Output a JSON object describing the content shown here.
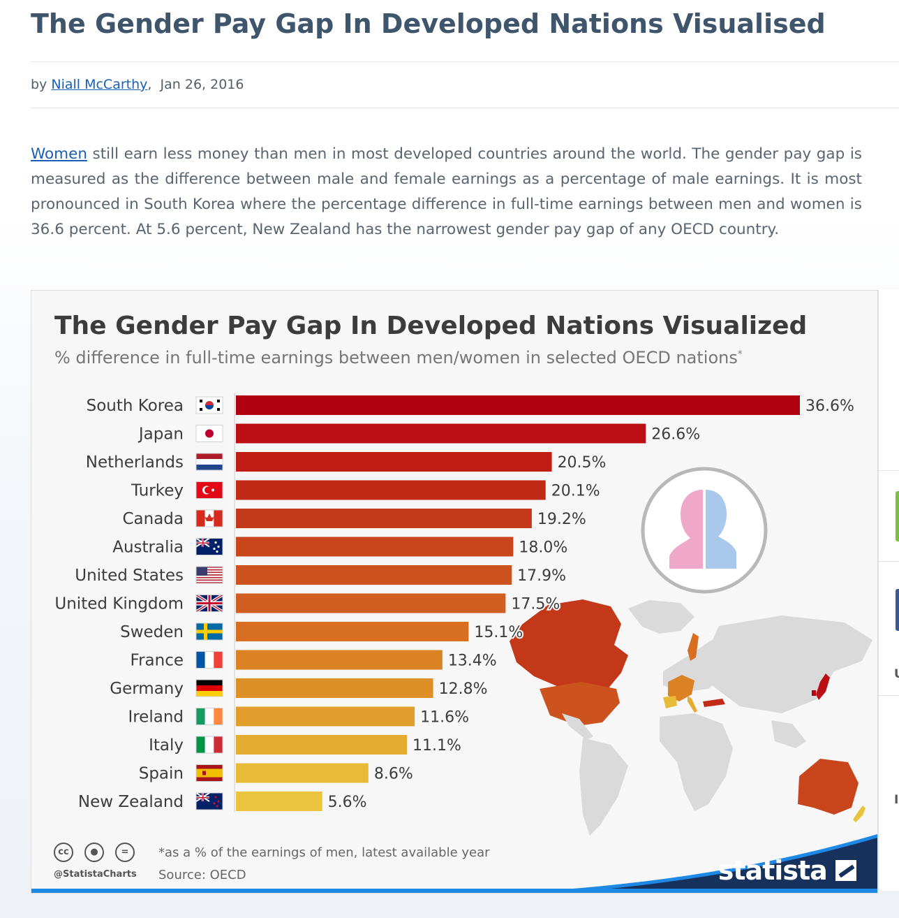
{
  "article": {
    "title": "The Gender Pay Gap In Developed Nations Visualised",
    "by": "by",
    "author": "Niall McCarthy",
    "date": "Jan 26, 2016",
    "link_word": "Women",
    "body": "still earn less money than men in most developed countries around the world. The gender pay gap is measured as the difference between male and female earnings as a percentage of male earnings. It is most pronounced in South Korea where the percentage difference in full-time earnings between men and women is 36.6 percent. At 5.6 percent, New Zealand has the narrowest gender pay gap of any OECD country."
  },
  "chart_data": {
    "type": "bar",
    "orientation": "horizontal",
    "title": "The Gender Pay Gap In Developed Nations Visualized",
    "subtitle": "% difference in full-time earnings between men/women in selected OECD nations",
    "subtitle_mark": "*",
    "categories": [
      "South Korea",
      "Japan",
      "Netherlands",
      "Turkey",
      "Canada",
      "Australia",
      "United States",
      "United Kingdom",
      "Sweden",
      "France",
      "Germany",
      "Ireland",
      "Italy",
      "Spain",
      "New Zealand"
    ],
    "values": [
      36.6,
      26.6,
      20.5,
      20.1,
      19.2,
      18.0,
      17.9,
      17.5,
      15.1,
      13.4,
      12.8,
      11.6,
      11.1,
      8.6,
      5.6
    ],
    "value_labels": [
      "36.6%",
      "26.6%",
      "20.5%",
      "20.1%",
      "19.2%",
      "18.0%",
      "17.9%",
      "17.5%",
      "15.1%",
      "13.4%",
      "12.8%",
      "11.6%",
      "11.1%",
      "8.6%",
      "5.6%"
    ],
    "bar_colors": [
      "#b1000f",
      "#bb0e14",
      "#bf1d16",
      "#c12a17",
      "#c4381a",
      "#c9461c",
      "#cc521e",
      "#d05e20",
      "#d66f22",
      "#db8225",
      "#de9028",
      "#e19e2c",
      "#e4ad31",
      "#e7bb37",
      "#eac43c"
    ],
    "flags": [
      "south-korea",
      "japan",
      "netherlands",
      "turkey",
      "canada",
      "australia",
      "united-states",
      "united-kingdom",
      "sweden",
      "france",
      "germany",
      "ireland",
      "italy",
      "spain",
      "new-zealand"
    ],
    "xlim": [
      0,
      36.6
    ],
    "footnote": "*as a % of the earnings of men, latest available year",
    "source": "Source: OECD"
  },
  "branding": {
    "handle": "@StatistaCharts",
    "logo": "statista",
    "cc_icons": [
      "cc",
      "by",
      "nd"
    ]
  },
  "sidebar": {
    "letters": [
      "U",
      "I"
    ]
  }
}
